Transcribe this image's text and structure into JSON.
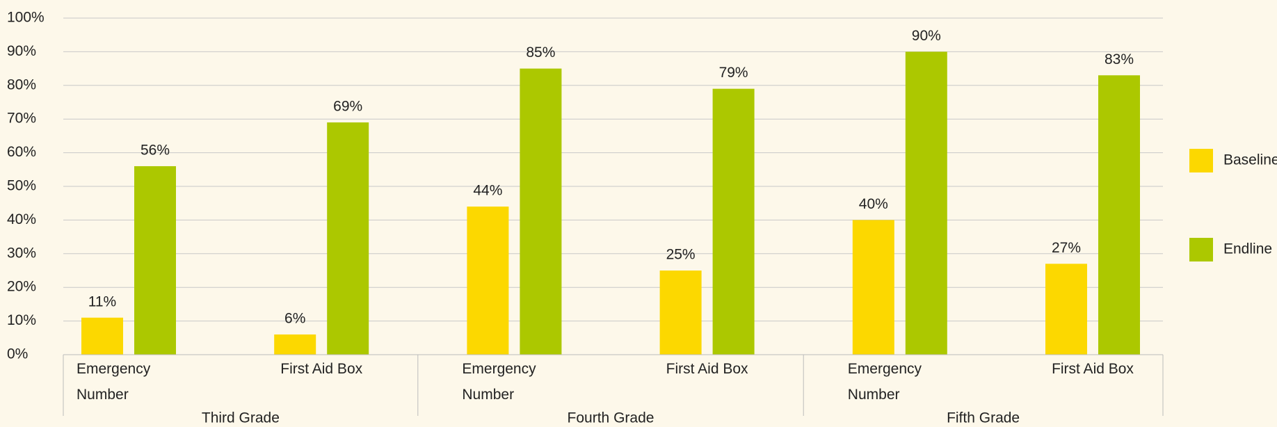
{
  "chart_data": {
    "type": "bar",
    "categories": [
      "Emergency Number",
      "First Aid Box",
      "Emergency Number",
      "First Aid Box",
      "Emergency Number",
      "First Aid Box"
    ],
    "groups": [
      "Third Grade",
      "Fourth Grade",
      "Fifth Grade"
    ],
    "series": [
      {
        "name": "Baseline",
        "color": "#fcd800",
        "values": [
          11,
          6,
          44,
          25,
          40,
          27
        ],
        "value_labels": [
          "11%",
          "6%",
          "44%",
          "25%",
          "40%",
          "27%"
        ]
      },
      {
        "name": "Endline",
        "color": "#acc800",
        "values": [
          56,
          69,
          85,
          79,
          90,
          83
        ],
        "value_labels": [
          "56%",
          "69%",
          "85%",
          "79%",
          "90%",
          "83%"
        ]
      }
    ],
    "ylim": [
      0,
      100
    ],
    "yticks": [
      {
        "value": 0,
        "label": "0%"
      },
      {
        "value": 10,
        "label": "10%"
      },
      {
        "value": 20,
        "label": "20%"
      },
      {
        "value": 30,
        "label": "30%"
      },
      {
        "value": 40,
        "label": "40%"
      },
      {
        "value": 50,
        "label": "50%"
      },
      {
        "value": 60,
        "label": "60%"
      },
      {
        "value": 70,
        "label": "70%"
      },
      {
        "value": 80,
        "label": "80%"
      },
      {
        "value": 90,
        "label": "90%"
      },
      {
        "value": 100,
        "label": "100%"
      }
    ],
    "grid": true,
    "legend": "right"
  }
}
